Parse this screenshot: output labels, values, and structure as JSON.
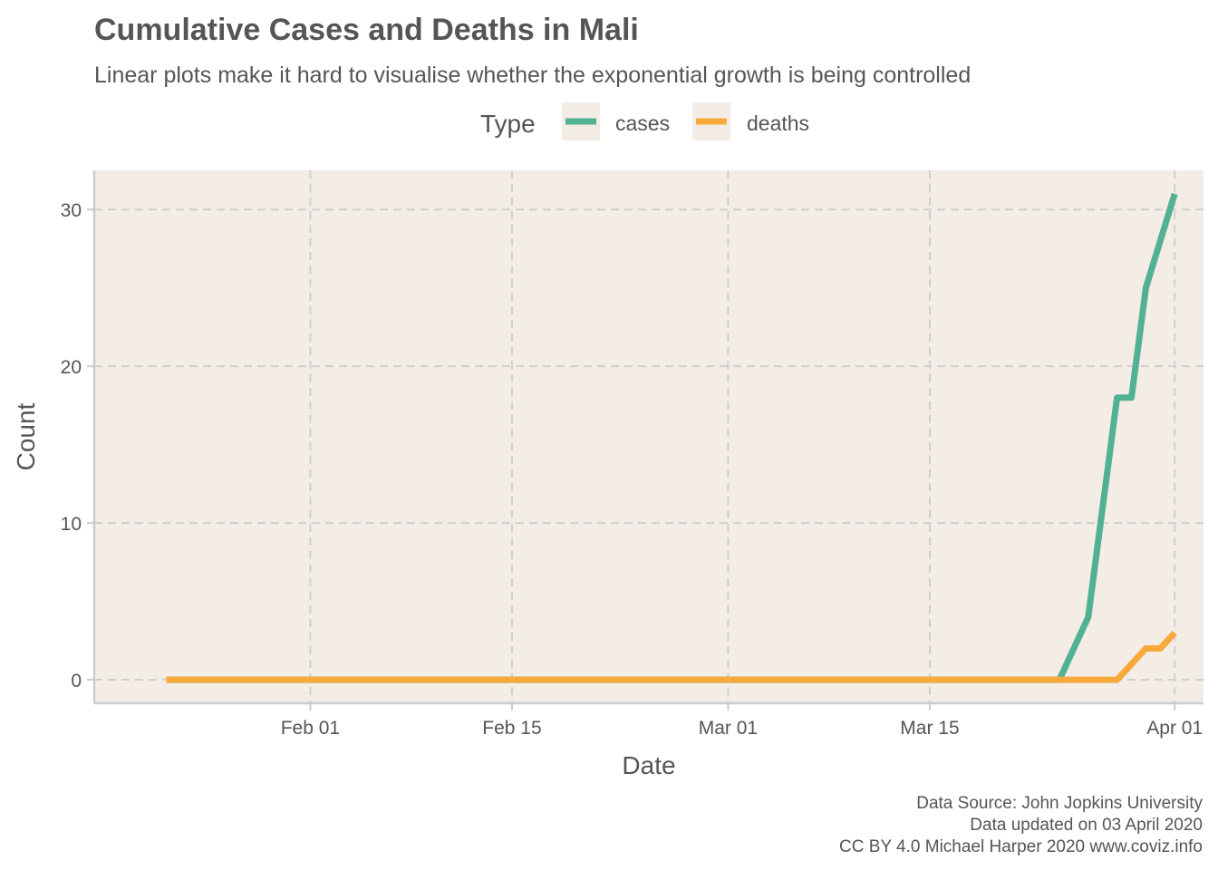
{
  "chart_data": {
    "type": "line",
    "title": "Cumulative Cases and Deaths in Mali",
    "subtitle": "Linear plots make it hard to visualise whether the exponential growth is being controlled",
    "xlabel": "Date",
    "ylabel": "Count",
    "legend_title": "Type",
    "legend_position": "top",
    "grid": true,
    "background_color": "#f3ede6",
    "x_type": "date",
    "xlim": [
      "2020-01-17",
      "2020-04-03"
    ],
    "ylim": [
      -1.5,
      32.5
    ],
    "x_ticks": [
      {
        "date": "2020-02-01",
        "label": "Feb 01"
      },
      {
        "date": "2020-02-15",
        "label": "Feb 15"
      },
      {
        "date": "2020-03-01",
        "label": "Mar 01"
      },
      {
        "date": "2020-03-15",
        "label": "Mar 15"
      },
      {
        "date": "2020-04-01",
        "label": "Apr 01"
      }
    ],
    "y_ticks": [
      {
        "value": 0,
        "label": "0"
      },
      {
        "value": 10,
        "label": "10"
      },
      {
        "value": 20,
        "label": "20"
      },
      {
        "value": 30,
        "label": "30"
      }
    ],
    "series": [
      {
        "name": "cases",
        "color": "#52b192",
        "points": [
          {
            "x": "2020-01-22",
            "y": 0
          },
          {
            "x": "2020-03-24",
            "y": 0
          },
          {
            "x": "2020-03-26",
            "y": 4
          },
          {
            "x": "2020-03-28",
            "y": 18
          },
          {
            "x": "2020-03-29",
            "y": 18
          },
          {
            "x": "2020-03-30",
            "y": 25
          },
          {
            "x": "2020-04-01",
            "y": 31
          }
        ]
      },
      {
        "name": "deaths",
        "color": "#f8a93c",
        "points": [
          {
            "x": "2020-01-22",
            "y": 0
          },
          {
            "x": "2020-03-28",
            "y": 0
          },
          {
            "x": "2020-03-30",
            "y": 2
          },
          {
            "x": "2020-03-31",
            "y": 2
          },
          {
            "x": "2020-04-01",
            "y": 3
          }
        ]
      }
    ],
    "caption": [
      "Data Source: John Jopkins University",
      "Data updated on 03 April 2020",
      "CC BY 4.0 Michael Harper 2020 www.coviz.info"
    ]
  }
}
